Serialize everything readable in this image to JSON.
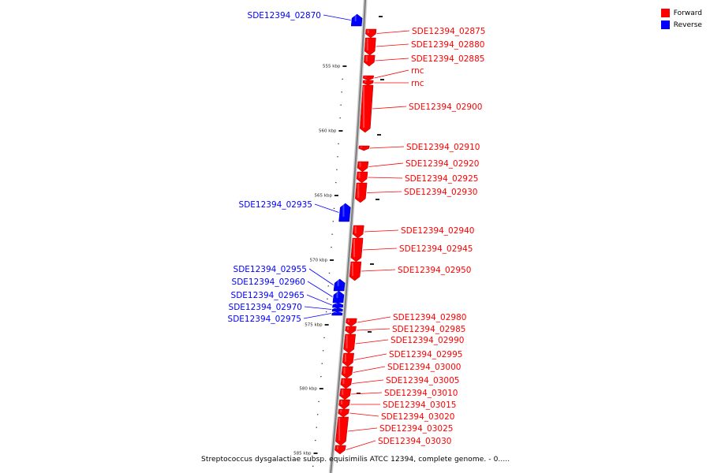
{
  "legend": {
    "items": [
      {
        "label": "Forward",
        "color": "#ff0000"
      },
      {
        "label": "Reverse",
        "color": "#0000ff"
      }
    ]
  },
  "caption": "Streptococcus dysgalactiae subsp. equisimilis ATCC 12394, complete genome. - 0.....",
  "colors": {
    "forward": "#ff0000",
    "reverse": "#0000ff",
    "backbone": "#808080"
  },
  "ticks": [
    {
      "kbp": 555,
      "label": "555 kbp"
    },
    {
      "kbp": 560,
      "label": "560 kbp"
    },
    {
      "kbp": 565,
      "label": "565 kbp"
    },
    {
      "kbp": 570,
      "label": "570 kbp"
    },
    {
      "kbp": 575,
      "label": "575 kbp"
    },
    {
      "kbp": 580,
      "label": "580 kbp"
    },
    {
      "kbp": 585,
      "label": "585 kbp"
    }
  ],
  "features": [
    {
      "name": "SDE12394_02870",
      "strand": "reverse"
    },
    {
      "name": "SDE12394_02875",
      "strand": "forward"
    },
    {
      "name": "SDE12394_02880",
      "strand": "forward"
    },
    {
      "name": "SDE12394_02885",
      "strand": "forward"
    },
    {
      "name": "rnc",
      "strand": "forward"
    },
    {
      "name": "rnc",
      "strand": "forward"
    },
    {
      "name": "SDE12394_02900",
      "strand": "forward"
    },
    {
      "name": "SDE12394_02910",
      "strand": "forward"
    },
    {
      "name": "SDE12394_02920",
      "strand": "forward"
    },
    {
      "name": "SDE12394_02925",
      "strand": "forward"
    },
    {
      "name": "SDE12394_02930",
      "strand": "forward"
    },
    {
      "name": "SDE12394_02935",
      "strand": "reverse"
    },
    {
      "name": "SDE12394_02940",
      "strand": "forward"
    },
    {
      "name": "SDE12394_02945",
      "strand": "forward"
    },
    {
      "name": "SDE12394_02950",
      "strand": "forward"
    },
    {
      "name": "SDE12394_02955",
      "strand": "reverse"
    },
    {
      "name": "SDE12394_02960",
      "strand": "reverse"
    },
    {
      "name": "SDE12394_02965",
      "strand": "reverse"
    },
    {
      "name": "SDE12394_02970",
      "strand": "reverse"
    },
    {
      "name": "SDE12394_02975",
      "strand": "reverse"
    },
    {
      "name": "SDE12394_02980",
      "strand": "forward"
    },
    {
      "name": "SDE12394_02985",
      "strand": "forward"
    },
    {
      "name": "SDE12394_02990",
      "strand": "forward"
    },
    {
      "name": "SDE12394_02995",
      "strand": "forward"
    },
    {
      "name": "SDE12394_03000",
      "strand": "forward"
    },
    {
      "name": "SDE12394_03005",
      "strand": "forward"
    },
    {
      "name": "SDE12394_03010",
      "strand": "forward"
    },
    {
      "name": "SDE12394_03015",
      "strand": "forward"
    },
    {
      "name": "SDE12394_03020",
      "strand": "forward"
    },
    {
      "name": "SDE12394_03025",
      "strand": "forward"
    },
    {
      "name": "SDE12394_03030",
      "strand": "forward"
    }
  ]
}
